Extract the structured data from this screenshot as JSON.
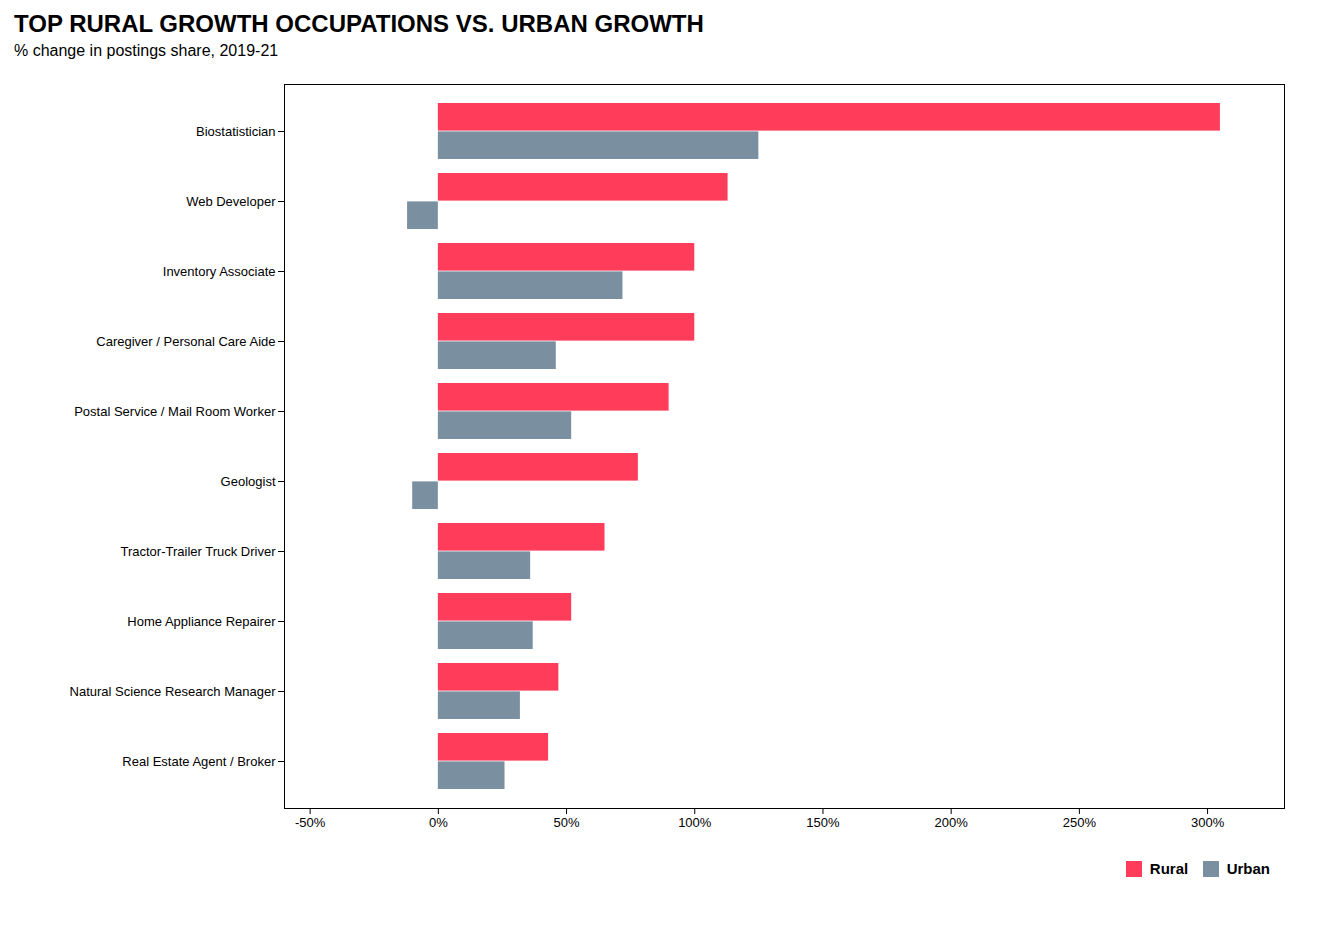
{
  "chart_data": {
    "type": "bar",
    "orientation": "horizontal",
    "title": "TOP RURAL GROWTH OCCUPATIONS VS. URBAN GROWTH",
    "subtitle": "% change in postings share, 2019-21",
    "categories": [
      "Biostatistician",
      "Web Developer",
      "Inventory Associate",
      "Caregiver / Personal Care Aide",
      "Postal Service / Mail Room Worker",
      "Geologist",
      "Tractor-Trailer Truck Driver",
      "Home Appliance Repairer",
      "Natural Science Research Manager",
      "Real Estate Agent / Broker"
    ],
    "series": [
      {
        "name": "Rural",
        "color": "#FF3D5A",
        "values": [
          305,
          113,
          100,
          100,
          90,
          78,
          65,
          52,
          47,
          43
        ]
      },
      {
        "name": "Urban",
        "color": "#7A8FA0",
        "values": [
          125,
          -12,
          72,
          46,
          52,
          -10,
          36,
          37,
          32,
          26
        ]
      }
    ],
    "xlim": [
      -60,
      330
    ],
    "xticks": [
      {
        "value": -50,
        "label": "-50%"
      },
      {
        "value": 0,
        "label": "0%"
      },
      {
        "value": 50,
        "label": "50%"
      },
      {
        "value": 100,
        "label": "100%"
      },
      {
        "value": 150,
        "label": "150%"
      },
      {
        "value": 200,
        "label": "200%"
      },
      {
        "value": 250,
        "label": "250%"
      },
      {
        "value": 300,
        "label": "300%"
      }
    ],
    "grid": false,
    "legend": "lower right"
  }
}
